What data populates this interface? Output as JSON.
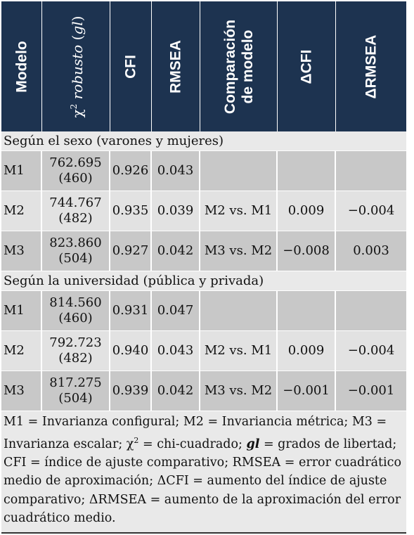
{
  "header": {
    "col_modelo": "Modelo",
    "col_chi_symbol": "χ",
    "col_chi_sup": "2",
    "col_chi_word": "robusto",
    "col_chi_gl": "gl",
    "col_cfi": "CFI",
    "col_rmsea": "RMSEA",
    "col_comp_line1": "Comparación",
    "col_comp_line2": "de modelo",
    "col_dcfi": "ΔCFI",
    "col_drmsea": "ΔRMSEA"
  },
  "groups": [
    {
      "title": "Según el sexo (varones y mujeres)",
      "rows": [
        {
          "modelo": "M1",
          "chi": "762.695",
          "gl": "(460)",
          "cfi": "0.926",
          "rmsea": "0.043",
          "comp": "",
          "dcfi": "",
          "drmsea": ""
        },
        {
          "modelo": "M2",
          "chi": "744.767",
          "gl": "(482)",
          "cfi": "0.935",
          "rmsea": "0.039",
          "comp": "M2 vs. M1",
          "dcfi": "0.009",
          "drmsea": "−0.004"
        },
        {
          "modelo": "M3",
          "chi": "823.860",
          "gl": "(504)",
          "cfi": "0.927",
          "rmsea": "0.042",
          "comp": "M3 vs. M2",
          "dcfi": "−0.008",
          "drmsea": "0.003"
        }
      ]
    },
    {
      "title": "Según la universidad (pública y privada)",
      "rows": [
        {
          "modelo": "M1",
          "chi": "814.560",
          "gl": "(460)",
          "cfi": "0.931",
          "rmsea": "0.047",
          "comp": "",
          "dcfi": "",
          "drmsea": ""
        },
        {
          "modelo": "M2",
          "chi": "792.723",
          "gl": "(482)",
          "cfi": "0.940",
          "rmsea": "0.043",
          "comp": "M2 vs. M1",
          "dcfi": "0.009",
          "drmsea": "−0.004"
        },
        {
          "modelo": "M3",
          "chi": "817.275",
          "gl": "(504)",
          "cfi": "0.939",
          "rmsea": "0.042",
          "comp": "M3 vs. M2",
          "dcfi": "−0.001",
          "drmsea": "−0.001"
        }
      ]
    }
  ],
  "note": {
    "part1": "M1 = Invarianza configural; M2 = Invariancia métrica; M3 = Invarianza escalar; χ",
    "sup": "2",
    "part2": " = chi-cuadrado; ",
    "gl": "gl",
    "part3": " = grados de libertad; CFI = índice de ajuste comparativo; RMSEA = error cuadrático medio de aproximación; ΔCFI = aumento del índice de ajuste comparativo; ΔRMSEA = aumento de la aproximación del error cuadrático medio."
  }
}
